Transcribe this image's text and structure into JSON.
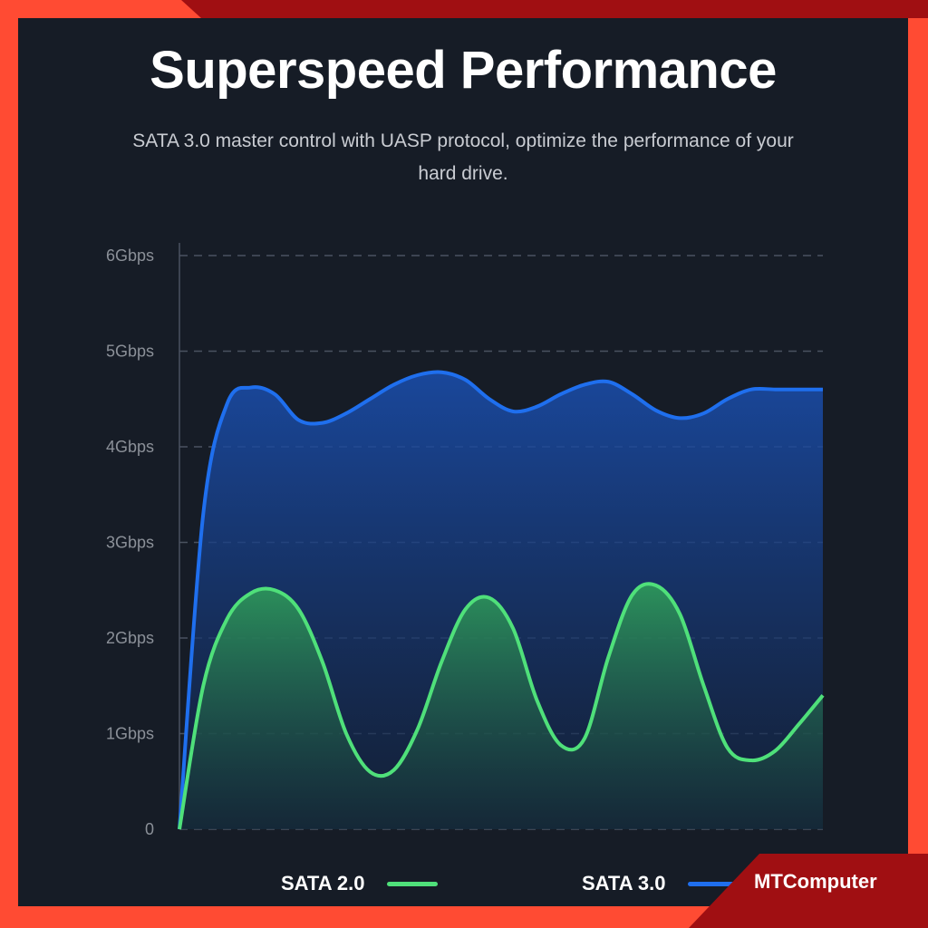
{
  "header": {
    "title": "Superspeed Performance",
    "subtitle": "SATA 3.0 master control with UASP protocol, optimize the performance of your hard drive."
  },
  "brand": {
    "name": "MTComputer"
  },
  "colors": {
    "frame": "#ff4b33",
    "frame_dark": "#a00f12",
    "panel": "#161c26",
    "sata2": "#4fe07a",
    "sata3": "#1f6fee",
    "grid": "#4a5260",
    "tick_text": "#8b9098"
  },
  "chart_data": {
    "type": "area",
    "title": "Superspeed Performance",
    "xlabel": "",
    "ylabel": "",
    "ylim": [
      0,
      6
    ],
    "yticks": [
      "0",
      "1Gbps",
      "2Gbps",
      "3Gbps",
      "4Gbps",
      "5Gbps",
      "6Gbps"
    ],
    "grid": true,
    "legend_position": "bottom",
    "x": [
      0,
      0.5,
      1,
      1.5,
      2,
      2.5,
      3,
      3.5,
      4,
      4.5,
      5,
      5.5,
      6,
      6.5,
      7,
      7.5,
      8,
      8.5,
      9,
      9.5,
      10,
      10.5,
      11,
      11.5,
      12,
      12.5,
      13,
      13.5
    ],
    "series": [
      {
        "name": "SATA 2.0",
        "color": "#4fe07a",
        "values": [
          0,
          1.5,
          2.2,
          2.47,
          2.5,
          2.3,
          1.75,
          1.0,
          0.6,
          0.62,
          1.05,
          1.75,
          2.3,
          2.42,
          2.1,
          1.35,
          0.88,
          0.95,
          1.8,
          2.45,
          2.55,
          2.25,
          1.5,
          0.85,
          0.72,
          0.82,
          1.1,
          1.4
        ]
      },
      {
        "name": "SATA 3.0",
        "color": "#1f6fee",
        "values": [
          0,
          3.3,
          4.45,
          4.62,
          4.55,
          4.28,
          4.25,
          4.35,
          4.5,
          4.65,
          4.75,
          4.78,
          4.7,
          4.5,
          4.37,
          4.42,
          4.55,
          4.65,
          4.68,
          4.55,
          4.38,
          4.3,
          4.35,
          4.5,
          4.6,
          4.6,
          4.6,
          4.6
        ]
      }
    ]
  }
}
